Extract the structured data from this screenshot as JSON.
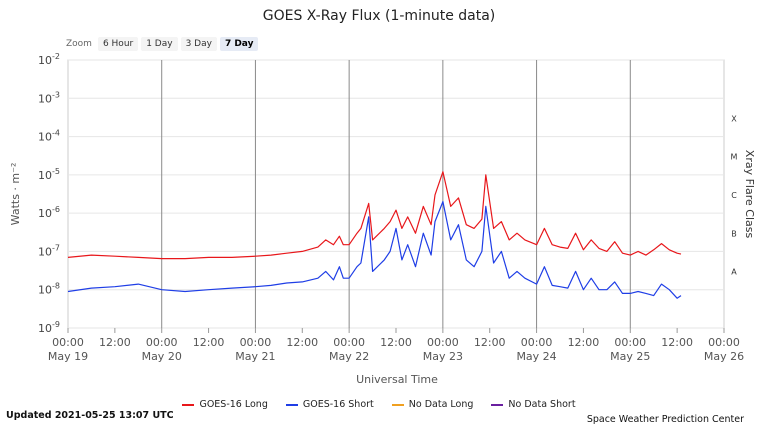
{
  "zoom": {
    "label": "Zoom",
    "options": [
      {
        "label": "6 Hour",
        "active": false
      },
      {
        "label": "1 Day",
        "active": false
      },
      {
        "label": "3 Day",
        "active": false
      },
      {
        "label": "7 Day",
        "active": true
      }
    ]
  },
  "legend": [
    {
      "label": "GOES-16 Long",
      "color": "#e8171b"
    },
    {
      "label": "GOES-16 Short",
      "color": "#1f3ee6"
    },
    {
      "label": "No Data Long",
      "color": "#f0a020"
    },
    {
      "label": "No Data Short",
      "color": "#6a1fa0"
    }
  ],
  "footer": {
    "updated": "Updated 2021-05-25 13:07 UTC",
    "credit": "Space Weather Prediction Center"
  },
  "chart_data": {
    "type": "line",
    "title": "GOES X-Ray Flux (1-minute data)",
    "xlabel": "Universal Time",
    "ylabel": "Watts · m⁻²",
    "y2label": "Xray Flare Class",
    "yscale": "log",
    "ylim": [
      1e-09,
      0.01
    ],
    "ytick_exponents": [
      -2,
      -3,
      -4,
      -5,
      -6,
      -7,
      -8,
      -9
    ],
    "xlim": [
      "2021-05-19 00:00",
      "2021-05-26 00:00"
    ],
    "xticks": [
      {
        "time": "2021-05-19 00:00",
        "label": "00:00",
        "sublabel": "May 19"
      },
      {
        "time": "2021-05-19 12:00",
        "label": "12:00",
        "sublabel": ""
      },
      {
        "time": "2021-05-20 00:00",
        "label": "00:00",
        "sublabel": "May 20"
      },
      {
        "time": "2021-05-20 12:00",
        "label": "12:00",
        "sublabel": ""
      },
      {
        "time": "2021-05-21 00:00",
        "label": "00:00",
        "sublabel": "May 21"
      },
      {
        "time": "2021-05-21 12:00",
        "label": "12:00",
        "sublabel": ""
      },
      {
        "time": "2021-05-22 00:00",
        "label": "00:00",
        "sublabel": "May 22"
      },
      {
        "time": "2021-05-22 12:00",
        "label": "12:00",
        "sublabel": ""
      },
      {
        "time": "2021-05-23 00:00",
        "label": "00:00",
        "sublabel": "May 23"
      },
      {
        "time": "2021-05-23 12:00",
        "label": "12:00",
        "sublabel": ""
      },
      {
        "time": "2021-05-24 00:00",
        "label": "00:00",
        "sublabel": "May 24"
      },
      {
        "time": "2021-05-24 12:00",
        "label": "12:00",
        "sublabel": ""
      },
      {
        "time": "2021-05-25 00:00",
        "label": "00:00",
        "sublabel": "May 25"
      },
      {
        "time": "2021-05-25 12:00",
        "label": "12:00",
        "sublabel": ""
      },
      {
        "time": "2021-05-26 00:00",
        "label": "00:00",
        "sublabel": "May 26"
      }
    ],
    "flare_classes": [
      {
        "label": "X",
        "level": 0.0001
      },
      {
        "label": "M",
        "level": 1e-05
      },
      {
        "label": "C",
        "level": 1e-06
      },
      {
        "label": "B",
        "level": 1e-07
      },
      {
        "label": "A",
        "level": 1e-08
      }
    ],
    "grid": true,
    "legend_position": "bottom",
    "series": [
      {
        "name": "GOES-16 Long",
        "color": "#e8171b",
        "x": [
          "2021-05-19 00:00",
          "2021-05-19 06:00",
          "2021-05-19 12:00",
          "2021-05-19 18:00",
          "2021-05-20 00:00",
          "2021-05-20 06:00",
          "2021-05-20 12:00",
          "2021-05-20 18:00",
          "2021-05-21 00:00",
          "2021-05-21 04:00",
          "2021-05-21 08:00",
          "2021-05-21 12:00",
          "2021-05-21 16:00",
          "2021-05-21 18:00",
          "2021-05-21 20:00",
          "2021-05-21 21:30",
          "2021-05-21 22:30",
          "2021-05-22 00:00",
          "2021-05-22 02:00",
          "2021-05-22 03:00",
          "2021-05-22 05:00",
          "2021-05-22 06:00",
          "2021-05-22 09:00",
          "2021-05-22 10:30",
          "2021-05-22 12:00",
          "2021-05-22 13:30",
          "2021-05-22 15:00",
          "2021-05-22 17:00",
          "2021-05-22 19:00",
          "2021-05-22 21:00",
          "2021-05-22 22:00",
          "2021-05-23 00:00",
          "2021-05-23 02:00",
          "2021-05-23 04:00",
          "2021-05-23 06:00",
          "2021-05-23 08:00",
          "2021-05-23 10:00",
          "2021-05-23 11:00",
          "2021-05-23 13:00",
          "2021-05-23 15:00",
          "2021-05-23 17:00",
          "2021-05-23 19:00",
          "2021-05-23 21:00",
          "2021-05-24 00:00",
          "2021-05-24 02:00",
          "2021-05-24 04:00",
          "2021-05-24 06:00",
          "2021-05-24 08:00",
          "2021-05-24 10:00",
          "2021-05-24 12:00",
          "2021-05-24 14:00",
          "2021-05-24 16:00",
          "2021-05-24 18:00",
          "2021-05-24 20:00",
          "2021-05-24 22:00",
          "2021-05-25 00:00",
          "2021-05-25 02:00",
          "2021-05-25 04:00",
          "2021-05-25 06:00",
          "2021-05-25 08:00",
          "2021-05-25 10:00",
          "2021-05-25 12:00",
          "2021-05-25 13:00"
        ],
        "values": [
          7e-08,
          8e-08,
          7.5e-08,
          7e-08,
          6.5e-08,
          6.5e-08,
          7e-08,
          7e-08,
          7.5e-08,
          8e-08,
          9e-08,
          1e-07,
          1.3e-07,
          2e-07,
          1.5e-07,
          2.5e-07,
          1.5e-07,
          1.5e-07,
          3e-07,
          4e-07,
          1.8e-06,
          2e-07,
          4e-07,
          6e-07,
          1.2e-06,
          4e-07,
          8e-07,
          3e-07,
          1.5e-06,
          5e-07,
          3e-06,
          1.2e-05,
          1.5e-06,
          2.5e-06,
          5e-07,
          4e-07,
          7e-07,
          1e-05,
          4e-07,
          6e-07,
          2e-07,
          3e-07,
          2e-07,
          1.5e-07,
          4e-07,
          1.5e-07,
          1.3e-07,
          1.2e-07,
          3e-07,
          1.1e-07,
          2e-07,
          1.2e-07,
          1e-07,
          1.8e-07,
          9e-08,
          8e-08,
          1e-07,
          8e-08,
          1.1e-07,
          1.6e-07,
          1.1e-07,
          9e-08,
          8.5e-08
        ]
      },
      {
        "name": "GOES-16 Short",
        "color": "#1f3ee6",
        "x": [
          "2021-05-19 00:00",
          "2021-05-19 06:00",
          "2021-05-19 12:00",
          "2021-05-19 18:00",
          "2021-05-20 00:00",
          "2021-05-20 06:00",
          "2021-05-20 12:00",
          "2021-05-20 18:00",
          "2021-05-21 00:00",
          "2021-05-21 04:00",
          "2021-05-21 08:00",
          "2021-05-21 12:00",
          "2021-05-21 16:00",
          "2021-05-21 18:00",
          "2021-05-21 20:00",
          "2021-05-21 21:30",
          "2021-05-21 22:30",
          "2021-05-22 00:00",
          "2021-05-22 02:00",
          "2021-05-22 03:00",
          "2021-05-22 05:00",
          "2021-05-22 06:00",
          "2021-05-22 09:00",
          "2021-05-22 10:30",
          "2021-05-22 12:00",
          "2021-05-22 13:30",
          "2021-05-22 15:00",
          "2021-05-22 17:00",
          "2021-05-22 19:00",
          "2021-05-22 21:00",
          "2021-05-22 22:00",
          "2021-05-23 00:00",
          "2021-05-23 02:00",
          "2021-05-23 04:00",
          "2021-05-23 06:00",
          "2021-05-23 08:00",
          "2021-05-23 10:00",
          "2021-05-23 11:00",
          "2021-05-23 13:00",
          "2021-05-23 15:00",
          "2021-05-23 17:00",
          "2021-05-23 19:00",
          "2021-05-23 21:00",
          "2021-05-24 00:00",
          "2021-05-24 02:00",
          "2021-05-24 04:00",
          "2021-05-24 06:00",
          "2021-05-24 08:00",
          "2021-05-24 10:00",
          "2021-05-24 12:00",
          "2021-05-24 14:00",
          "2021-05-24 16:00",
          "2021-05-24 18:00",
          "2021-05-24 20:00",
          "2021-05-24 22:00",
          "2021-05-25 00:00",
          "2021-05-25 02:00",
          "2021-05-25 04:00",
          "2021-05-25 06:00",
          "2021-05-25 08:00",
          "2021-05-25 10:00",
          "2021-05-25 12:00",
          "2021-05-25 13:00"
        ],
        "values": [
          9e-09,
          1.1e-08,
          1.2e-08,
          1.4e-08,
          1e-08,
          9e-09,
          1e-08,
          1.1e-08,
          1.2e-08,
          1.3e-08,
          1.5e-08,
          1.6e-08,
          2e-08,
          3e-08,
          1.8e-08,
          4e-08,
          2e-08,
          2e-08,
          4e-08,
          5e-08,
          8e-07,
          3e-08,
          6e-08,
          1e-07,
          4e-07,
          6e-08,
          1.5e-07,
          4e-08,
          3e-07,
          8e-08,
          6e-07,
          2e-06,
          2e-07,
          5e-07,
          6e-08,
          4e-08,
          1e-07,
          1.5e-06,
          5e-08,
          1e-07,
          2e-08,
          3e-08,
          2e-08,
          1.4e-08,
          4e-08,
          1.3e-08,
          1.2e-08,
          1.1e-08,
          3e-08,
          1e-08,
          2e-08,
          1e-08,
          1e-08,
          1.6e-08,
          8e-09,
          8e-09,
          9e-09,
          8e-09,
          7e-09,
          1.4e-08,
          1e-08,
          6e-09,
          7e-09
        ]
      }
    ]
  }
}
